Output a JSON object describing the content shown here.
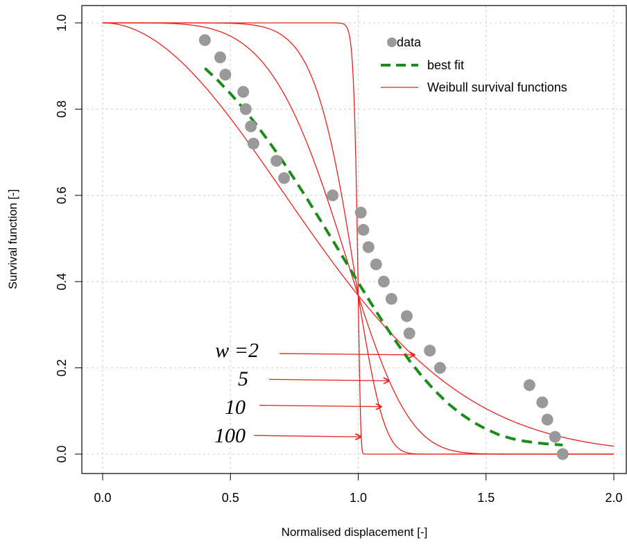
{
  "chart_data": {
    "type": "scatter",
    "title": "",
    "xlabel": "Normalised displacement [-]",
    "ylabel": "Survival function [-]",
    "xlim": [
      0.0,
      2.0
    ],
    "ylim": [
      0.0,
      1.0
    ],
    "xticks": [
      "0.0",
      "0.5",
      "1.0",
      "1.5",
      "2.0"
    ],
    "yticks": [
      "0.0",
      "0.2",
      "0.4",
      "0.6",
      "0.8",
      "1.0"
    ],
    "grid": true,
    "legend_position": "top-right",
    "legend": [
      "data",
      "best fit",
      "Weibull survival functions"
    ],
    "series": [
      {
        "name": "data",
        "kind": "points",
        "color": "#999999",
        "x": [
          0.4,
          0.46,
          0.48,
          0.55,
          0.56,
          0.58,
          0.59,
          0.68,
          0.71,
          0.9,
          1.01,
          1.02,
          1.04,
          1.07,
          1.1,
          1.13,
          1.19,
          1.2,
          1.28,
          1.32,
          1.67,
          1.72,
          1.74,
          1.77,
          1.8
        ],
        "y": [
          0.96,
          0.92,
          0.88,
          0.84,
          0.8,
          0.76,
          0.72,
          0.68,
          0.64,
          0.6,
          0.56,
          0.52,
          0.48,
          0.44,
          0.4,
          0.36,
          0.32,
          0.28,
          0.24,
          0.2,
          0.16,
          0.12,
          0.08,
          0.04,
          0.0
        ]
      },
      {
        "name": "best fit",
        "kind": "dashed-line",
        "color": "#1a8c1a",
        "x": [
          0.4,
          0.45,
          0.5,
          0.55,
          0.6,
          0.65,
          0.7,
          0.75,
          0.8,
          0.85,
          0.9,
          0.95,
          1.0,
          1.05,
          1.1,
          1.15,
          1.2,
          1.25,
          1.3,
          1.35,
          1.4,
          1.45,
          1.5,
          1.55,
          1.6,
          1.65,
          1.7,
          1.75,
          1.8
        ],
        "y": [
          0.895,
          0.867,
          0.836,
          0.802,
          0.765,
          0.725,
          0.683,
          0.638,
          0.592,
          0.544,
          0.496,
          0.447,
          0.398,
          0.35,
          0.303,
          0.259,
          0.217,
          0.18,
          0.147,
          0.118,
          0.094,
          0.074,
          0.058,
          0.045,
          0.036,
          0.03,
          0.026,
          0.023,
          0.021
        ]
      }
    ],
    "weibull_curves": {
      "color": "#e8201a",
      "scale": 1.0,
      "shape_values": [
        2,
        5,
        10,
        100
      ]
    },
    "annotations": [
      {
        "label": "w =2",
        "target_x": 1.22,
        "target_y": 0.23
      },
      {
        "label": "5",
        "target_x": 1.12,
        "target_y": 0.17
      },
      {
        "label": "10",
        "target_x": 1.09,
        "target_y": 0.11
      },
      {
        "label": "100",
        "target_x": 1.01,
        "target_y": 0.04
      }
    ]
  }
}
